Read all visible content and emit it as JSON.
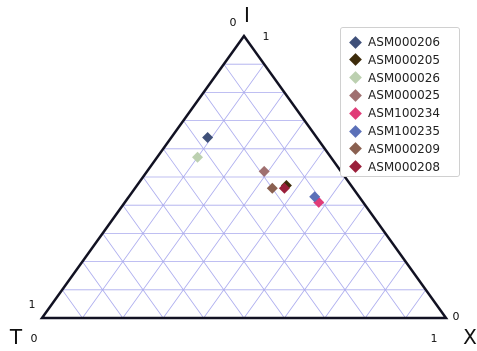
{
  "chart_data": {
    "type": "scatter",
    "subtype": "ternary",
    "axes": {
      "top": {
        "label": "I",
        "min_label": "0",
        "max_label": "1"
      },
      "left": {
        "label": "T",
        "min_label": "0",
        "max_label": "1"
      },
      "right": {
        "label": "X",
        "min_label": "1",
        "max_label": "0"
      }
    },
    "grid": true,
    "grid_step": 0.1,
    "grid_color": "#aaaaee",
    "frame_color": "#111122",
    "legend_position": "top-right",
    "series": [
      {
        "name": "ASM000206",
        "color": "#3f5079",
        "points": [
          {
            "I": 0.64,
            "T": 0.27,
            "X": 0.09
          }
        ]
      },
      {
        "name": "ASM000205",
        "color": "#3d2b0a",
        "points": [
          {
            "I": 0.47,
            "T": 0.16,
            "X": 0.37
          }
        ]
      },
      {
        "name": "ASM000026",
        "color": "#bcd0b0",
        "points": [
          {
            "I": 0.57,
            "T": 0.33,
            "X": 0.1
          }
        ]
      },
      {
        "name": "ASM000025",
        "color": "#a07070",
        "points": [
          {
            "I": 0.52,
            "T": 0.19,
            "X": 0.29
          }
        ]
      },
      {
        "name": "ASM100234",
        "color": "#e03c78",
        "points": [
          {
            "I": 0.41,
            "T": 0.11,
            "X": 0.48
          }
        ]
      },
      {
        "name": "ASM100235",
        "color": "#5b70b8",
        "points": [
          {
            "I": 0.43,
            "T": 0.11,
            "X": 0.46
          }
        ]
      },
      {
        "name": "ASM000209",
        "color": "#8a6050",
        "points": [
          {
            "I": 0.46,
            "T": 0.2,
            "X": 0.34
          }
        ]
      },
      {
        "name": "ASM000208",
        "color": "#9a1f3a",
        "points": [
          {
            "I": 0.46,
            "T": 0.17,
            "X": 0.37
          }
        ]
      }
    ]
  }
}
